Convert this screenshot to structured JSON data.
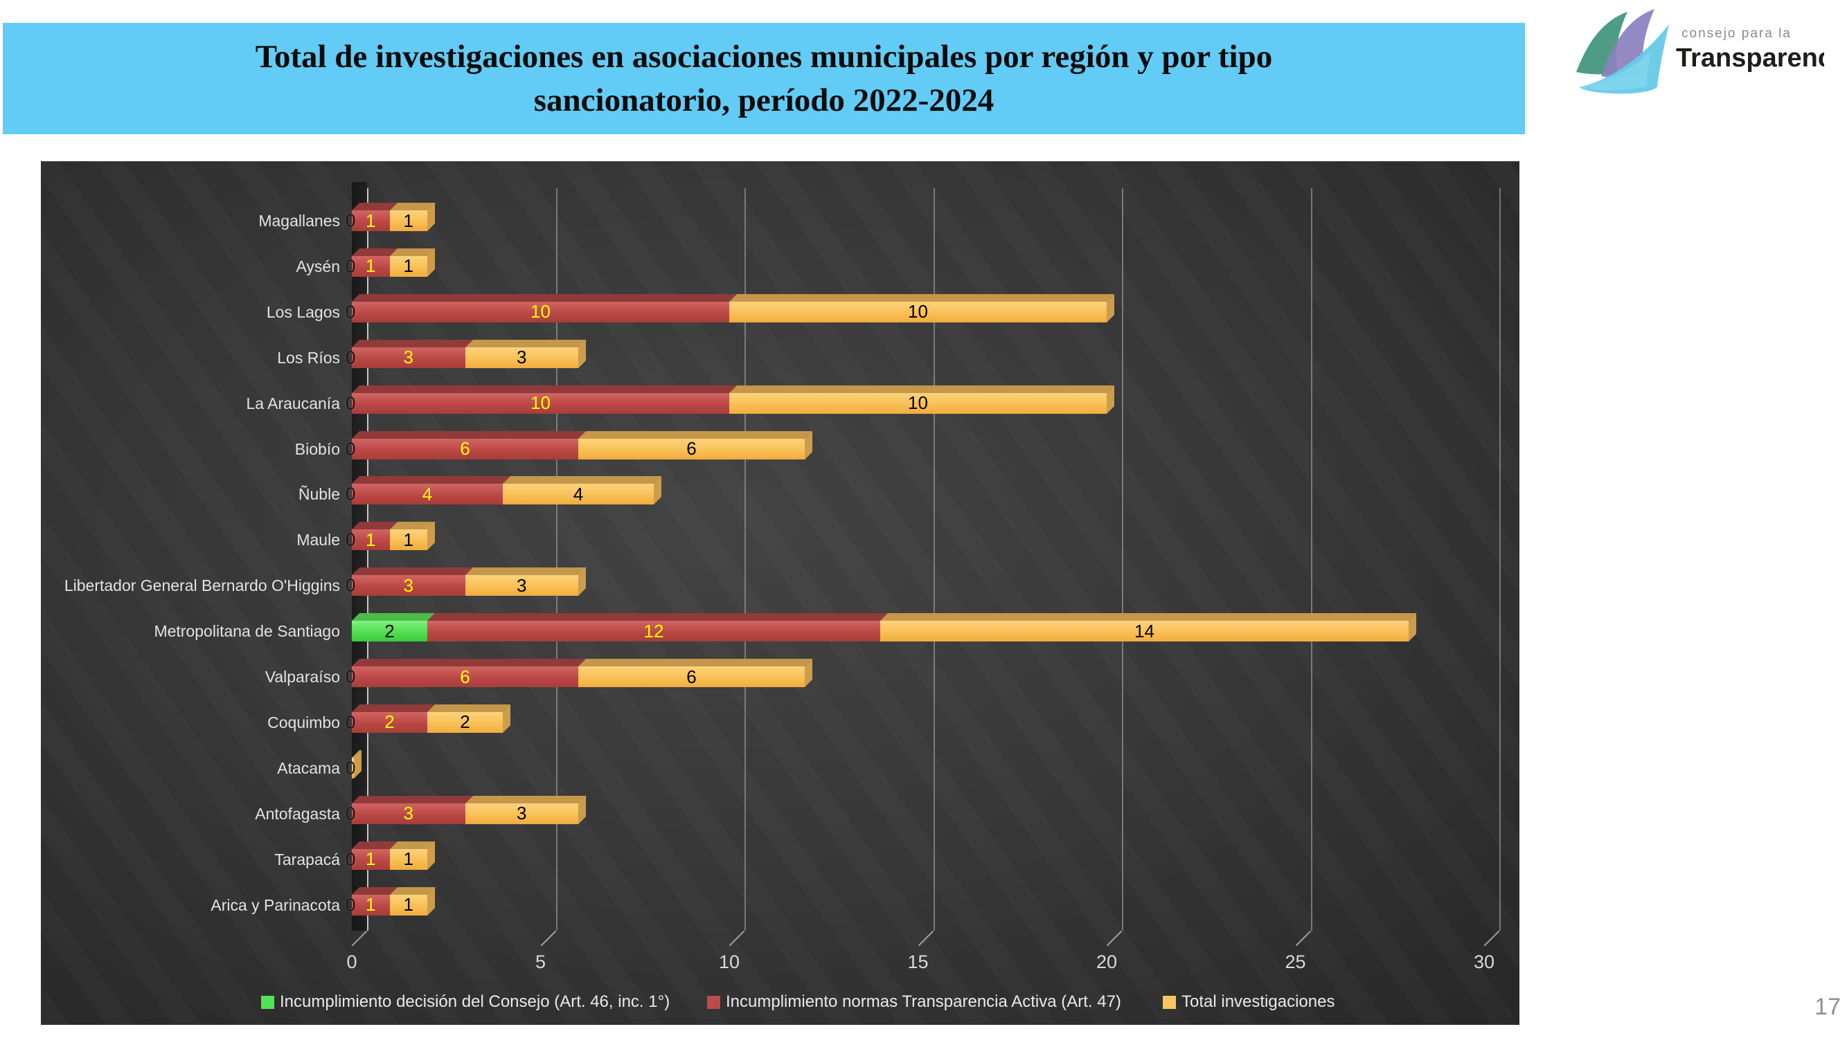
{
  "header": {
    "title_line1": "Total de investigaciones en asociaciones municipales por región y por tipo",
    "title_line2": "sancionatorio, período 2022-2024",
    "banner_color": "#62CBF6"
  },
  "logo": {
    "tagline": "consejo para la",
    "name": "Transparencia"
  },
  "page_number": "17",
  "chart_data": {
    "type": "bar",
    "orientation": "horizontal",
    "stacked": true,
    "title": "Total de investigaciones en asociaciones municipales por región y por tipo sancionatorio, período 2022-2024",
    "categories_order": "top-to-bottom",
    "categories": [
      "Magallanes",
      "Aysén",
      "Los Lagos",
      "Los Ríos",
      "La Araucanía",
      "Biobío",
      "Ñuble",
      "Maule",
      "Libertador General Bernardo O'Higgins",
      "Metropolitana de Santiago",
      "Valparaíso",
      "Coquimbo",
      "Atacama",
      "Antofagasta",
      "Tarapacá",
      "Arica y Parinacota"
    ],
    "series": [
      {
        "name": "Incumplimiento decisión del Consejo (Art. 46, inc. 1°)",
        "color": "#52E352",
        "value_label_color": "#000000",
        "values": [
          0,
          0,
          0,
          0,
          0,
          0,
          0,
          0,
          0,
          2,
          0,
          0,
          0,
          0,
          0,
          0
        ]
      },
      {
        "name": "Incumplimiento normas Transparencia Activa (Art. 47)",
        "color": "#BE4B48",
        "value_label_color": "#FFFF00",
        "values": [
          1,
          1,
          10,
          3,
          10,
          6,
          4,
          1,
          3,
          12,
          6,
          2,
          0,
          3,
          1,
          1
        ]
      },
      {
        "name": "Total investigaciones",
        "color": "#F9C45F",
        "value_label_color": "#000000",
        "values": [
          1,
          1,
          10,
          3,
          10,
          6,
          4,
          1,
          3,
          14,
          6,
          2,
          0,
          3,
          1,
          1
        ]
      }
    ],
    "x_axis": {
      "min": 0,
      "max": 30,
      "step": 5,
      "tick_labels": [
        "0",
        "5",
        "10",
        "15",
        "20",
        "25",
        "30"
      ]
    },
    "grid": "vertical",
    "legend_position": "bottom",
    "value_labels_shown": true,
    "background": "dark-gradient-3d"
  }
}
